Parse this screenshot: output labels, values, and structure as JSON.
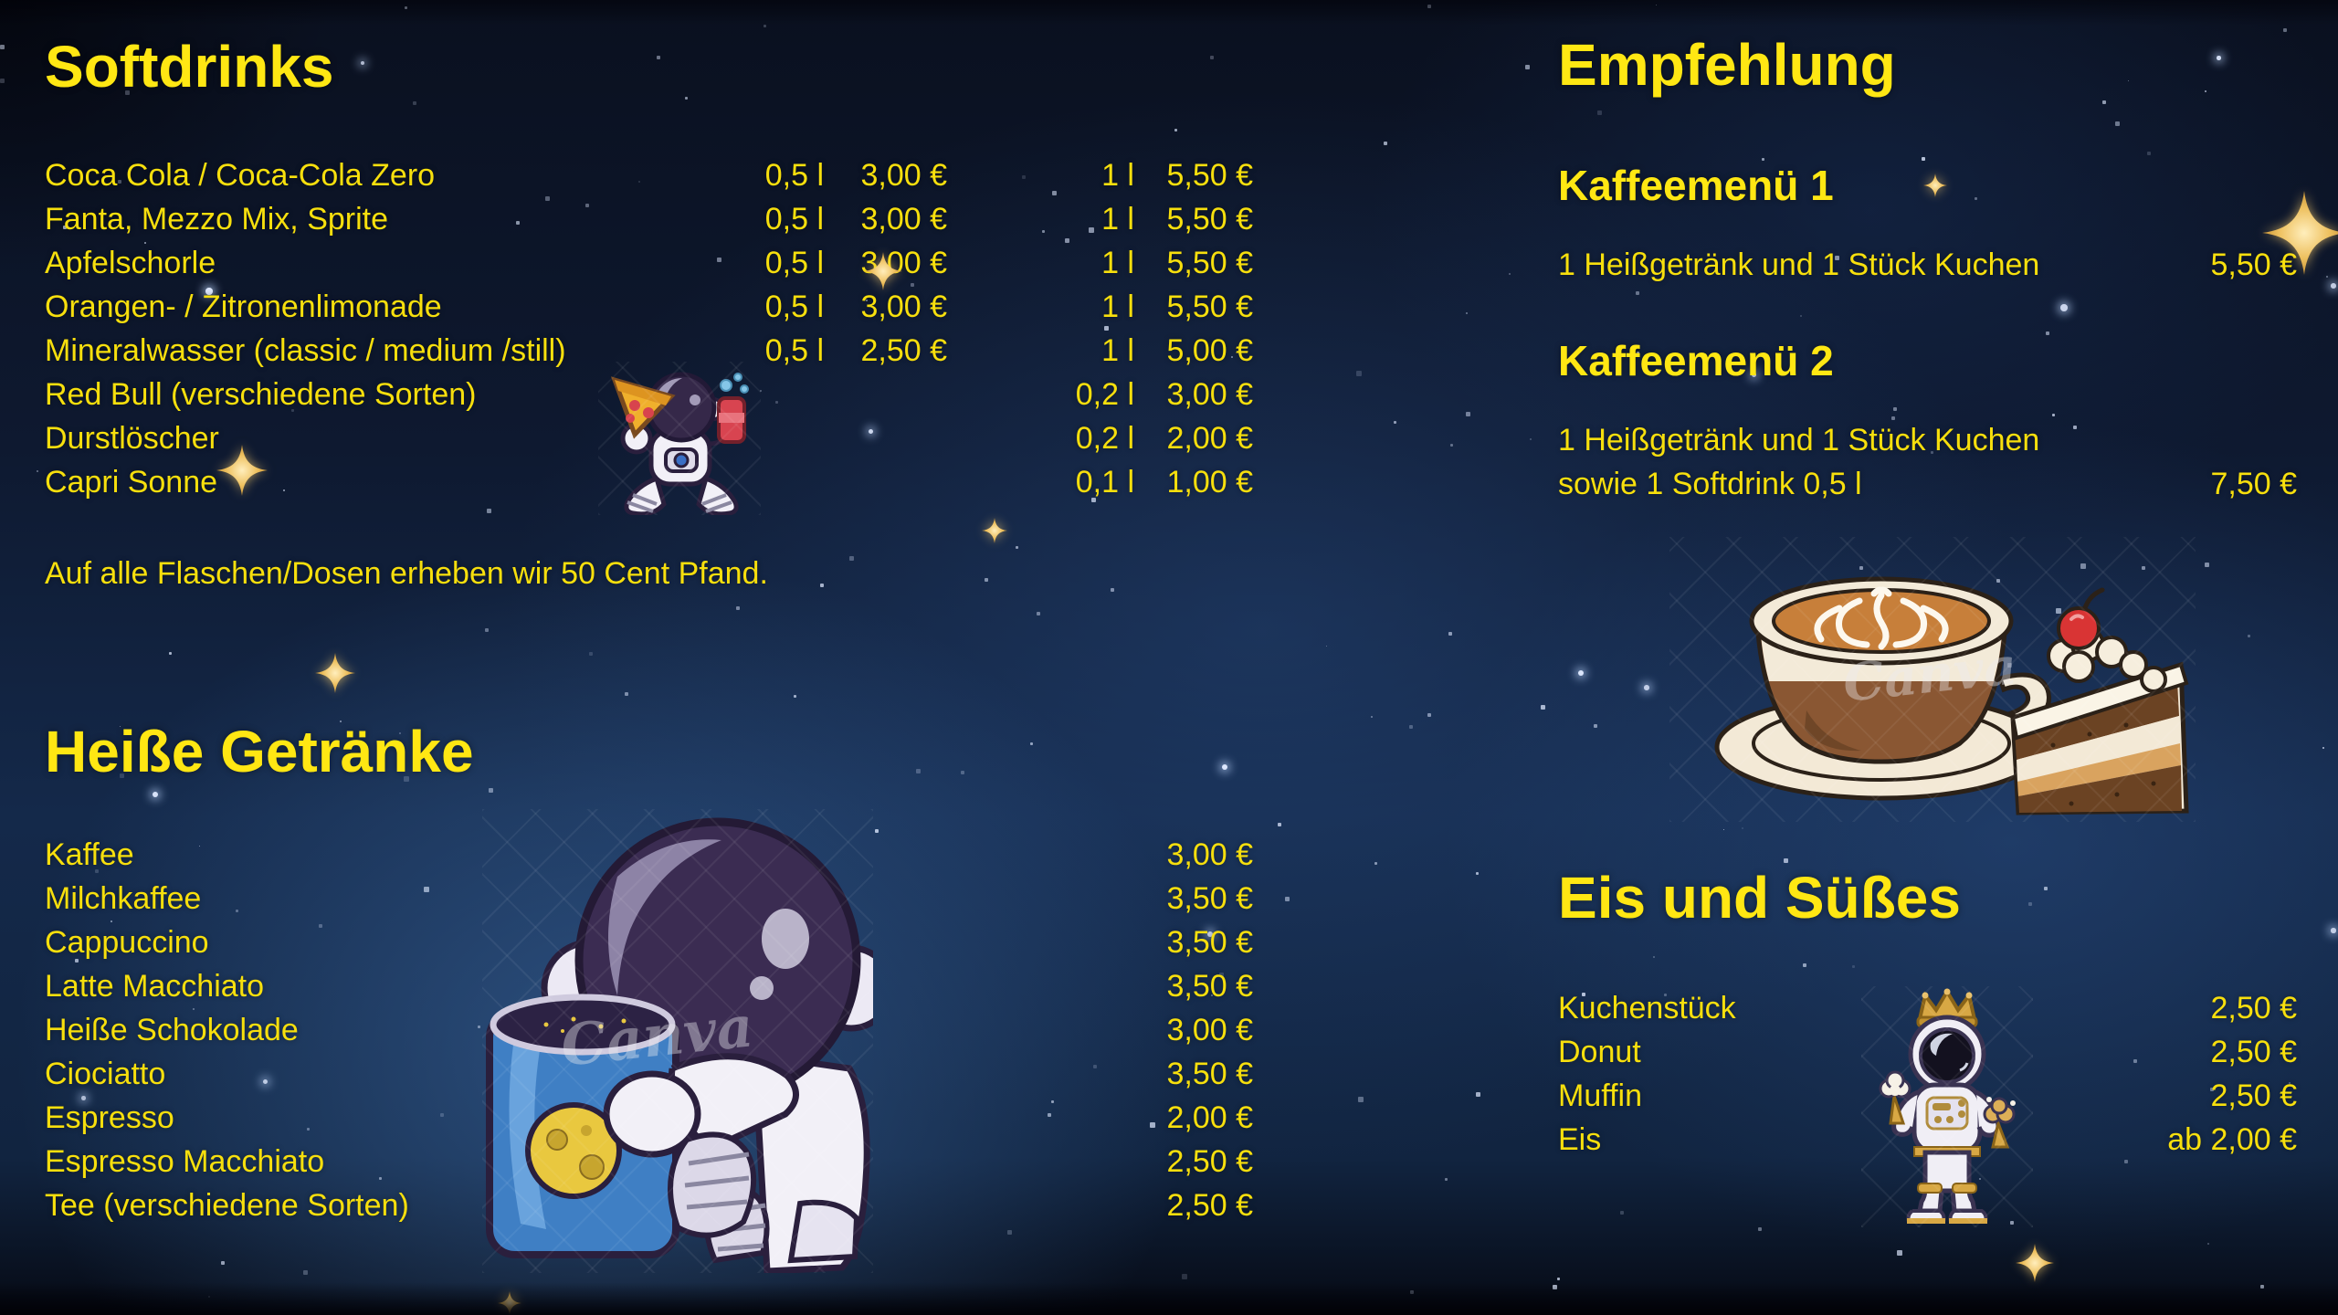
{
  "softdrinks": {
    "title": "Softdrinks",
    "items": [
      {
        "name": "Coca Cola / Coca-Cola Zero",
        "size1": "0,5 l",
        "price1": "3,00 €",
        "size2": "1 l",
        "price2": "5,50 €"
      },
      {
        "name": "Fanta, Mezzo Mix, Sprite",
        "size1": "0,5 l",
        "price1": "3,00 €",
        "size2": "1 l",
        "price2": "5,50 €"
      },
      {
        "name": "Apfelschorle",
        "size1": "0,5 l",
        "price1": "3,00 €",
        "size2": "1 l",
        "price2": "5,50 €"
      },
      {
        "name": "Orangen- / Zitronenlimonade",
        "size1": "0,5 l",
        "price1": "3,00 €",
        "size2": "1 l",
        "price2": "5,50 €"
      },
      {
        "name": "Mineralwasser (classic / medium /still)",
        "size1": "0,5 l",
        "price1": "2,50 €",
        "size2": "1 l",
        "price2": "5,00 €"
      },
      {
        "name": "Red Bull (verschiedene Sorten)",
        "size1": "",
        "price1": "",
        "size2": "0,2 l",
        "price2": "3,00 €"
      },
      {
        "name": "Durstlöscher",
        "size1": "",
        "price1": "",
        "size2": "0,2 l",
        "price2": "2,00 €"
      },
      {
        "name": "Capri Sonne",
        "size1": "",
        "price1": "",
        "size2": "0,1 l",
        "price2": "1,00 €"
      }
    ],
    "note": "Auf alle Flaschen/Dosen erheben wir 50 Cent Pfand."
  },
  "hot_drinks": {
    "title": "Heiße Getränke",
    "items": [
      {
        "name": "Kaffee",
        "price": "3,00 €"
      },
      {
        "name": "Milchkaffee",
        "price": "3,50 €"
      },
      {
        "name": "Cappuccino",
        "price": "3,50 €"
      },
      {
        "name": "Latte Macchiato",
        "price": "3,50 €"
      },
      {
        "name": "Heiße Schokolade",
        "price": "3,00 €"
      },
      {
        "name": "Ciociatto",
        "price": "3,50 €"
      },
      {
        "name": "Espresso",
        "price": "2,00 €"
      },
      {
        "name": "Espresso Macchiato",
        "price": "2,50 €"
      },
      {
        "name": "Tee (verschiedene Sorten)",
        "price": "2,50 €"
      }
    ]
  },
  "recommendation": {
    "title": "Empfehlung",
    "menus": [
      {
        "title": "Kaffeemenü 1",
        "line1": "1 Heißgetränk und 1 Stück Kuchen",
        "price": "5,50 €"
      },
      {
        "title": "Kaffeemenü 2",
        "line1": "1 Heißgetränk und 1 Stück Kuchen",
        "line2": "sowie 1 Softdrink 0,5 l",
        "price": "7,50 €"
      }
    ]
  },
  "sweets": {
    "title": "Eis und Süßes",
    "items": [
      {
        "name": "Kuchenstück",
        "price": "2,50 €"
      },
      {
        "name": "Donut",
        "price": "2,50 €"
      },
      {
        "name": "Muffin",
        "price": "2,50 €"
      },
      {
        "name": "Eis",
        "price": "ab 2,00 €"
      }
    ]
  },
  "watermark": "Canva",
  "illustrations": {
    "astronaut_pizza": "astronaut-with-pizza-and-soda-can",
    "astronaut_mug": "astronaut-hugging-blue-moon-mug",
    "coffee_cake": "cappuccino-cup-and-cake-slice",
    "astronaut_king": "crowned-astronaut-with-ice-cream"
  },
  "colors": {
    "heading_yellow": "#ffe713",
    "text_yellow": "#f7df0d",
    "background_navy": "#0e1930",
    "star_gold": "#e9b952"
  }
}
